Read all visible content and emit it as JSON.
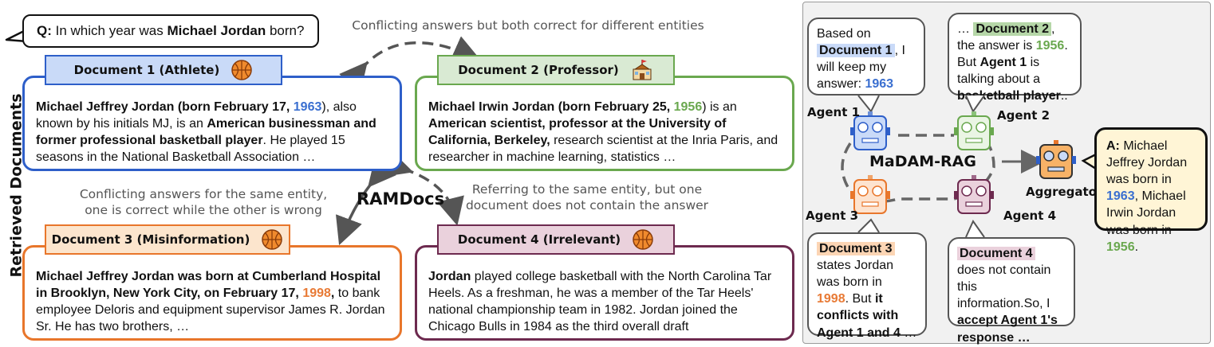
{
  "question": {
    "prefix": "Q:",
    "text_before": " In which year was ",
    "entity": "Michael Jordan",
    "text_after": " born?"
  },
  "side_label": "Retrieved Documents",
  "notes": {
    "top": "Conflicting answers but both correct for different entities",
    "left_line1": "Conflicting answers for the same entity,",
    "left_line2": "one is correct while the other is wrong",
    "right_line1": "Referring to the same entity, but one",
    "right_line2": "document does not contain the answer"
  },
  "center_label": "RAMDocs",
  "documents": [
    {
      "title": "Document 1 (Athlete)",
      "icon": "basketball-icon",
      "b1": "Michael Jeffrey Jordan (born February 17, ",
      "year": "1963",
      "t1": "), also known by his initials MJ, is an ",
      "b2": "American businessman and former professional basketball player",
      "t2": ". He played 15 seasons in the National Basketball Association …"
    },
    {
      "title": "Document 2 (Professor)",
      "icon": "school-icon",
      "b1": "Michael Irwin Jordan (born February 25, ",
      "year": "1956",
      "t1": ") is an ",
      "b2": "American scientist, professor at the University of California, Berkeley,",
      "t2": " research scientist at the Inria Paris, and researcher in machine learning, statistics …"
    },
    {
      "title": "Document 3 (Misinformation)",
      "icon": "basketball-icon",
      "b1": "Michael Jeffrey Jordan was born at Cumberland Hospital in Brooklyn, New York City, on February 17, ",
      "year": "1998",
      "b1_end": ",",
      "t1": " to bank employee Deloris and equipment supervisor James R. Jordan Sr. He has two brothers, …"
    },
    {
      "title": "Document 4 (Irrelevant)",
      "icon": "basketball-icon",
      "b1": "Jordan",
      "t1": " played college basketball with the North Carolina Tar Heels. As a freshman, he was a member of the Tar Heels' national championship team in 1982. Jordan joined the Chicago Bulls in 1984 as the third overall draft"
    }
  ],
  "madam": {
    "center_label": "MaDAM-RAG",
    "agents": [
      "Agent 1",
      "Agent 2",
      "Agent 3",
      "Agent 4"
    ],
    "aggregator": "Aggregator",
    "bubble1": {
      "t1": "Based on ",
      "doc": "Document 1",
      "t2": ", I will keep my answer: ",
      "year": "1963"
    },
    "bubble2": {
      "t1": "… ",
      "doc": "Document 2",
      "t2": ", the answer is ",
      "year": "1956",
      "t3": ". But ",
      "b1": "Agent 1",
      "t4": " is talking about a ",
      "b2": "basketball player",
      "t5": ".."
    },
    "bubble3": {
      "doc": "Document 3",
      "t1": " states Jordan was born in ",
      "year": "1998",
      "t2": ". But ",
      "b1": "it conflicts with Agent 1 and 4",
      "t3": " …"
    },
    "bubble4": {
      "doc": "Document 4",
      "t1": " does not contain this information.So, I ",
      "b1": "accept Agent 1's response …"
    },
    "answer": {
      "prefix": "A:",
      "t1": " Michael Jeffrey Jordan was born in ",
      "y1": "1963",
      "t2": ", Michael Irwin Jordan was born in ",
      "y2": "1956",
      "t3": "."
    }
  },
  "colors": {
    "doc1": "#2e5fc9",
    "doc1_fill": "#c9daf8",
    "doc2": "#6aa84f",
    "doc2_fill": "#d9ead3",
    "doc3": "#e8762b",
    "doc3_fill": "#fce5cd",
    "doc4": "#6d2a4f",
    "doc4_fill": "#ead1dc"
  }
}
